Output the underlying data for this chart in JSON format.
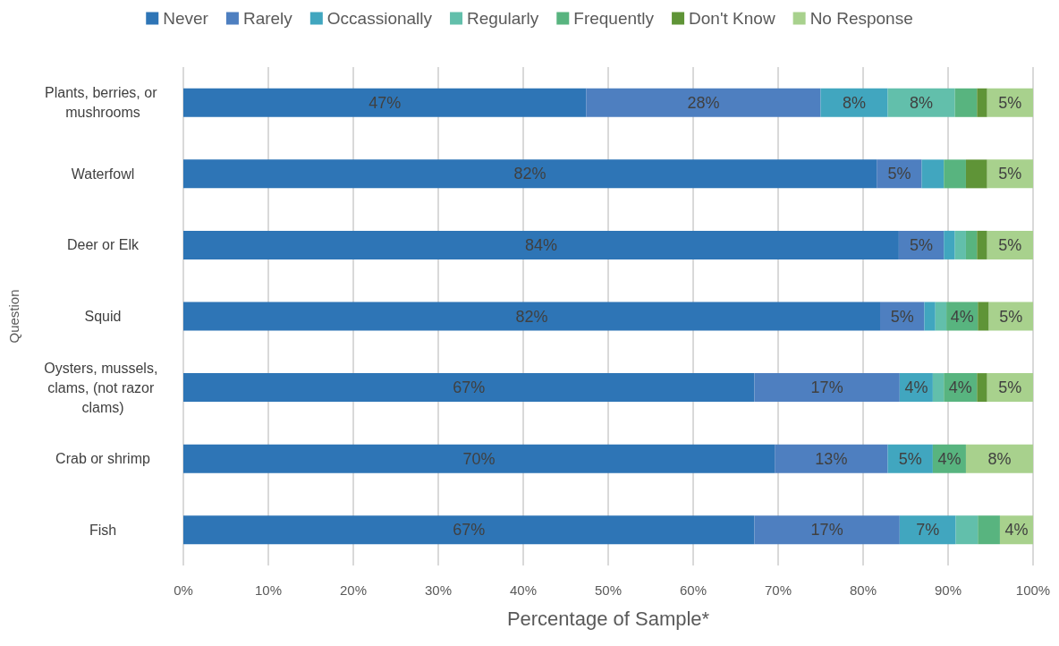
{
  "chart_data": {
    "type": "bar",
    "orientation": "horizontal",
    "stacked": true,
    "xlabel": "Percentage of Sample*",
    "ylabel": "Question",
    "categories": [
      "Plants, berries, or mushrooms",
      "Waterfowl",
      "Deer or Elk",
      "Squid",
      "Oysters, mussels, clams, (not razor clams)",
      "Crab or shrimp",
      "Fish"
    ],
    "series": [
      {
        "name": "Never",
        "color": "#2e75b6",
        "values": [
          47.4,
          81.6,
          84.2,
          82.0,
          67.2,
          69.6,
          67.2
        ],
        "value_labels": [
          "47%",
          "82%",
          "84%",
          "82%",
          "67%",
          "70%",
          "67%"
        ]
      },
      {
        "name": "Rarely",
        "color": "#4e7fc0",
        "values": [
          27.6,
          5.3,
          5.3,
          5.2,
          17.1,
          13.3,
          17.1
        ],
        "value_labels": [
          "28%",
          "5%",
          "5%",
          "5%",
          "17%",
          "13%",
          "17%"
        ]
      },
      {
        "name": "Occassionally",
        "color": "#41a6bf",
        "values": [
          7.9,
          2.6,
          1.3,
          1.3,
          3.9,
          5.3,
          6.6
        ],
        "value_labels": [
          "8%",
          null,
          null,
          null,
          "4%",
          "5%",
          "7%"
        ]
      },
      {
        "name": "Regularly",
        "color": "#62bfab",
        "values": [
          7.9,
          0,
          1.3,
          1.3,
          1.3,
          0,
          2.6
        ],
        "value_labels": [
          "8%",
          null,
          null,
          null,
          null,
          null,
          null
        ]
      },
      {
        "name": "Frequently",
        "color": "#58b47f",
        "values": [
          2.6,
          2.6,
          1.3,
          3.7,
          3.9,
          3.9,
          2.6
        ],
        "value_labels": [
          null,
          null,
          null,
          "4%",
          "4%",
          "4%",
          null
        ]
      },
      {
        "name": "Don't Know",
        "color": "#5f9437",
        "values": [
          1.2,
          2.5,
          1.2,
          1.3,
          1.2,
          0,
          0
        ],
        "value_labels": [
          null,
          null,
          null,
          null,
          null,
          null,
          null
        ]
      },
      {
        "name": "No Response",
        "color": "#a8d18d",
        "values": [
          5.4,
          5.4,
          5.4,
          5.2,
          5.4,
          7.9,
          3.9
        ],
        "value_labels": [
          "5%",
          "5%",
          "5%",
          "5%",
          "5%",
          "8%",
          "4%"
        ]
      }
    ],
    "xlim": [
      0,
      100
    ],
    "xticks": [
      {
        "value": 0,
        "label": "0%"
      },
      {
        "value": 10,
        "label": "10%"
      },
      {
        "value": 20,
        "label": "20%"
      },
      {
        "value": 30,
        "label": "30%"
      },
      {
        "value": 40,
        "label": "40%"
      },
      {
        "value": 50,
        "label": "50%"
      },
      {
        "value": 60,
        "label": "60%"
      },
      {
        "value": 70,
        "label": "70%"
      },
      {
        "value": 80,
        "label": "80%"
      },
      {
        "value": 90,
        "label": "90%"
      },
      {
        "value": 100,
        "label": "100%"
      }
    ],
    "grid": "x",
    "legend": "top"
  }
}
